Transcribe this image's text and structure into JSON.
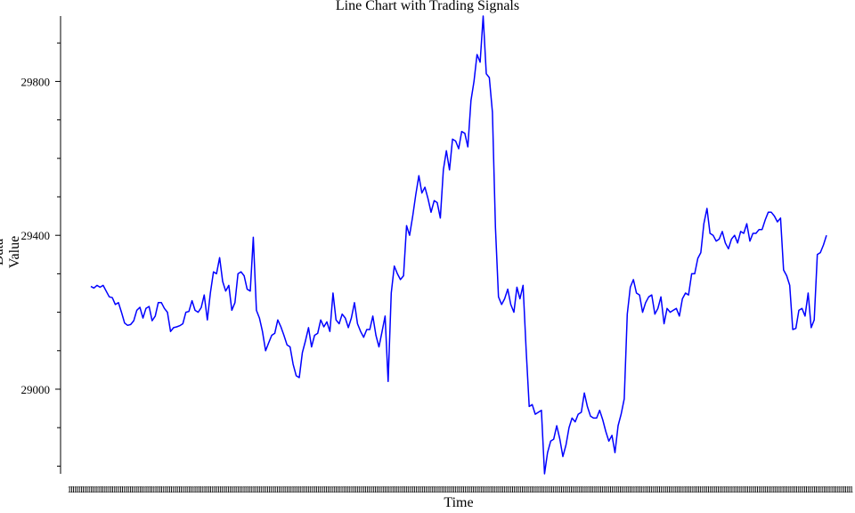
{
  "chart_data": {
    "type": "line",
    "title": "Line Chart with Trading Signals",
    "xlabel": "Time",
    "ylabel": "Data Value",
    "ylim": [
      28780,
      29970
    ],
    "yticks": [
      29000,
      29400,
      29800
    ],
    "yticks_minor": [
      28800,
      28900,
      29100,
      29200,
      29300,
      29500,
      29600,
      29700,
      29900
    ],
    "grid": false,
    "line_color": "#0000ff",
    "series": [
      {
        "values": [
          29267,
          29263,
          29270,
          29265,
          29270,
          29255,
          29240,
          29238,
          29220,
          29225,
          29200,
          29172,
          29166,
          29168,
          29178,
          29205,
          29213,
          29185,
          29210,
          29215,
          29178,
          29190,
          29225,
          29225,
          29210,
          29200,
          29150,
          29160,
          29162,
          29165,
          29170,
          29200,
          29202,
          29230,
          29205,
          29200,
          29212,
          29245,
          29180,
          29250,
          29305,
          29300,
          29342,
          29280,
          29255,
          29270,
          29205,
          29225,
          29300,
          29305,
          29295,
          29260,
          29255,
          29395,
          29205,
          29185,
          29150,
          29100,
          29120,
          29140,
          29145,
          29180,
          29162,
          29140,
          29115,
          29110,
          29065,
          29035,
          29030,
          29095,
          29125,
          29160,
          29110,
          29140,
          29145,
          29180,
          29162,
          29175,
          29150,
          29250,
          29180,
          29170,
          29195,
          29185,
          29160,
          29185,
          29225,
          29170,
          29150,
          29135,
          29155,
          29155,
          29190,
          29140,
          29110,
          29150,
          29190,
          29020,
          29250,
          29320,
          29300,
          29285,
          29295,
          29425,
          29400,
          29450,
          29505,
          29555,
          29510,
          29525,
          29495,
          29460,
          29490,
          29485,
          29445,
          29570,
          29620,
          29570,
          29650,
          29645,
          29625,
          29670,
          29665,
          29630,
          29750,
          29800,
          29870,
          29850,
          29970,
          29820,
          29810,
          29720,
          29420,
          29240,
          29220,
          29235,
          29260,
          29220,
          29200,
          29265,
          29235,
          29270,
          29105,
          28955,
          28960,
          28935,
          28940,
          28945,
          28780,
          28835,
          28865,
          28870,
          28905,
          28870,
          28825,
          28855,
          28900,
          28925,
          28915,
          28935,
          28940,
          28990,
          28955,
          28930,
          28925,
          28925,
          28945,
          28920,
          28890,
          28865,
          28880,
          28835,
          28905,
          28935,
          28975,
          29195,
          29265,
          29285,
          29250,
          29245,
          29200,
          29225,
          29240,
          29245,
          29195,
          29210,
          29240,
          29170,
          29210,
          29200,
          29205,
          29210,
          29190,
          29235,
          29250,
          29245,
          29300,
          29300,
          29340,
          29355,
          29430,
          29470,
          29405,
          29400,
          29385,
          29390,
          29410,
          29380,
          29365,
          29390,
          29400,
          29380,
          29410,
          29405,
          29430,
          29385,
          29405,
          29405,
          29415,
          29415,
          29440,
          29460,
          29460,
          29450,
          29435,
          29445,
          29310,
          29295,
          29270,
          29155,
          29158,
          29205,
          29210,
          29190,
          29250,
          29160,
          29180,
          29350,
          29355,
          29375,
          29400
        ]
      }
    ]
  }
}
